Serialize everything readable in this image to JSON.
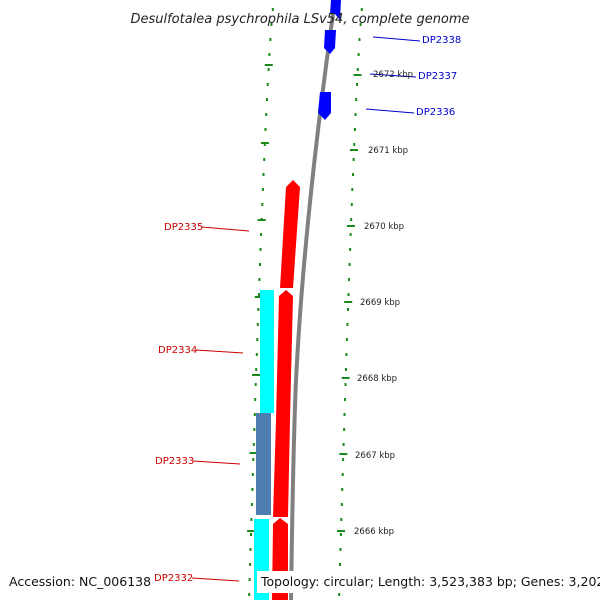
{
  "title": "Desulfotalea psychrophila LSv54, complete genome",
  "footer": {
    "accession": "Accession: NC_006138",
    "topology": "Topology: circular; Length: 3,523,383 bp; Genes: 3,202"
  },
  "colors": {
    "reverse_strand_gene": "#ff0000",
    "forward_strand_gene": "#0000ff",
    "cyan_feature": "#00ffff",
    "steelblue_feature": "#4f7fb0",
    "backbone": "#808080",
    "tick": "#1a8a1a"
  },
  "genes": [
    {
      "label": "DP2338",
      "strand": "forward"
    },
    {
      "label": "DP2337",
      "strand": "forward"
    },
    {
      "label": "DP2336",
      "strand": "forward"
    },
    {
      "label": "DP2335",
      "strand": "reverse"
    },
    {
      "label": "DP2334",
      "strand": "reverse"
    },
    {
      "label": "DP2333",
      "strand": "reverse"
    },
    {
      "label": "DP2332",
      "strand": "reverse"
    }
  ],
  "scale_labels": [
    "2672 kbp",
    "2671 kbp",
    "2670 kbp",
    "2669 kbp",
    "2668 kbp",
    "2667 kbp",
    "2666 kbp"
  ]
}
